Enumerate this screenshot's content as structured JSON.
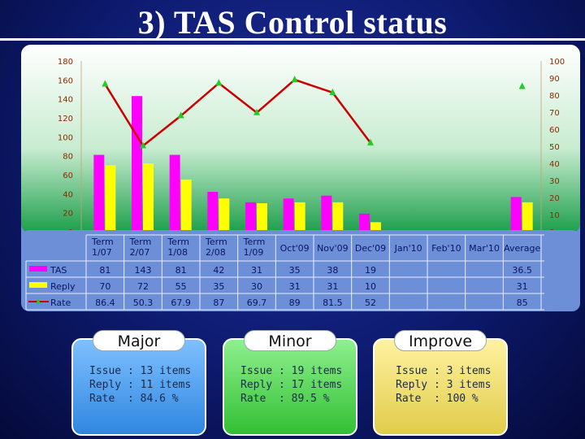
{
  "page": {
    "title": "3) TAS Control status"
  },
  "chart_data": {
    "type": "bar",
    "categories": [
      "Term 1/07",
      "Term 2/07",
      "Term 1/08",
      "Term 2/08",
      "Term 1/09",
      "Oct'09",
      "Nov'09",
      "Dec'09",
      "Jan'10",
      "Feb'10",
      "Mar'10",
      "Average"
    ],
    "category_lines": [
      [
        "Term",
        "1/07"
      ],
      [
        "Term",
        "2/07"
      ],
      [
        "Term",
        "1/08"
      ],
      [
        "Term",
        "2/08"
      ],
      [
        "Term",
        "1/09"
      ],
      [
        "Oct'09"
      ],
      [
        "Nov'09"
      ],
      [
        "Dec'09"
      ],
      [
        "Jan'10"
      ],
      [
        "Feb'10"
      ],
      [
        "Mar'10"
      ],
      [
        "Average"
      ]
    ],
    "series": [
      {
        "name": "TAS",
        "type": "bar",
        "axis": "left",
        "color": "#ff00ff",
        "values": [
          81,
          143,
          81,
          42,
          31,
          35,
          38,
          19,
          null,
          null,
          null,
          36.5
        ],
        "labels": [
          "81",
          "143",
          "81",
          "42",
          "31",
          "35",
          "38",
          "19",
          "",
          "",
          "",
          "36.5"
        ]
      },
      {
        "name": "Reply",
        "type": "bar",
        "axis": "left",
        "color": "#ffff00",
        "values": [
          70,
          72,
          55,
          35,
          30,
          31,
          31,
          10,
          null,
          null,
          null,
          31
        ],
        "labels": [
          "70",
          "72",
          "55",
          "35",
          "30",
          "31",
          "31",
          "10",
          "",
          "",
          "",
          "31"
        ]
      },
      {
        "name": "Rate",
        "type": "line",
        "axis": "right",
        "color": "#cc0000",
        "marker_color": "#22cc22",
        "values": [
          86.4,
          50.3,
          67.9,
          87,
          69.7,
          89,
          81.5,
          52,
          null,
          null,
          null,
          85
        ],
        "labels": [
          "86.4",
          "50.3",
          "67.9",
          "87",
          "69.7",
          "89",
          "81.5",
          "52",
          "",
          "",
          "",
          "85"
        ]
      }
    ],
    "ylim_left": [
      0,
      180
    ],
    "yticks_left": [
      "0",
      "20",
      "40",
      "60",
      "80",
      "100",
      "120",
      "140",
      "160",
      "180"
    ],
    "ylim_right": [
      0,
      100
    ],
    "yticks_right": [
      "0",
      "10",
      "20",
      "30",
      "40",
      "50",
      "60",
      "70",
      "80",
      "90",
      "100"
    ],
    "grid": false,
    "legend": "data-table-left"
  },
  "cards": [
    {
      "tab": "Major",
      "lines": [
        "Issue : 13 items",
        "Reply : 11 items",
        "Rate  : 84.6 %"
      ]
    },
    {
      "tab": "Minor",
      "lines": [
        "Issue : 19 items",
        "Reply : 17 items",
        "Rate  : 89.5 %"
      ]
    },
    {
      "tab": "Improve",
      "lines": [
        "Issue : 3 items",
        "Reply : 3 items",
        "Rate  : 100 %"
      ]
    }
  ],
  "colors": {
    "plot_top": "#ffffff",
    "plot_bottom": "#1b9e4a",
    "table_bg": "#6d8fd8",
    "table_text": "#0b1560"
  }
}
